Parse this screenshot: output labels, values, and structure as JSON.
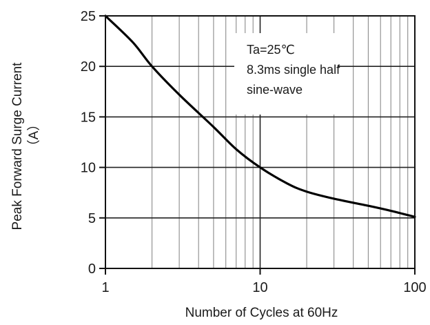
{
  "chart_data": {
    "type": "line",
    "x_scale": "log",
    "xlim": [
      1,
      100
    ],
    "ylim": [
      0,
      25
    ],
    "x_ticks": [
      1,
      10,
      100
    ],
    "x_tick_labels": [
      "1",
      "10",
      "100"
    ],
    "y_ticks": [
      0,
      5,
      10,
      15,
      20,
      25
    ],
    "y_tick_labels": [
      "0",
      "5",
      "10",
      "15",
      "20",
      "25"
    ],
    "xlabel": "Number of Cycles at 60Hz",
    "ylabel": "Peak Forward Surge Current",
    "ylabel_unit": "（A）",
    "grid": true,
    "annotation": [
      "Ta=25℃",
      "8.3ms single half",
      "sine-wave"
    ],
    "series": [
      {
        "x": [
          1,
          1.5,
          2,
          3,
          5,
          7,
          10,
          15,
          20,
          30,
          50,
          70,
          100
        ],
        "y": [
          25,
          22.4,
          20,
          17.2,
          14.0,
          11.8,
          10.0,
          8.4,
          7.6,
          6.9,
          6.2,
          5.7,
          5.1
        ]
      }
    ]
  }
}
